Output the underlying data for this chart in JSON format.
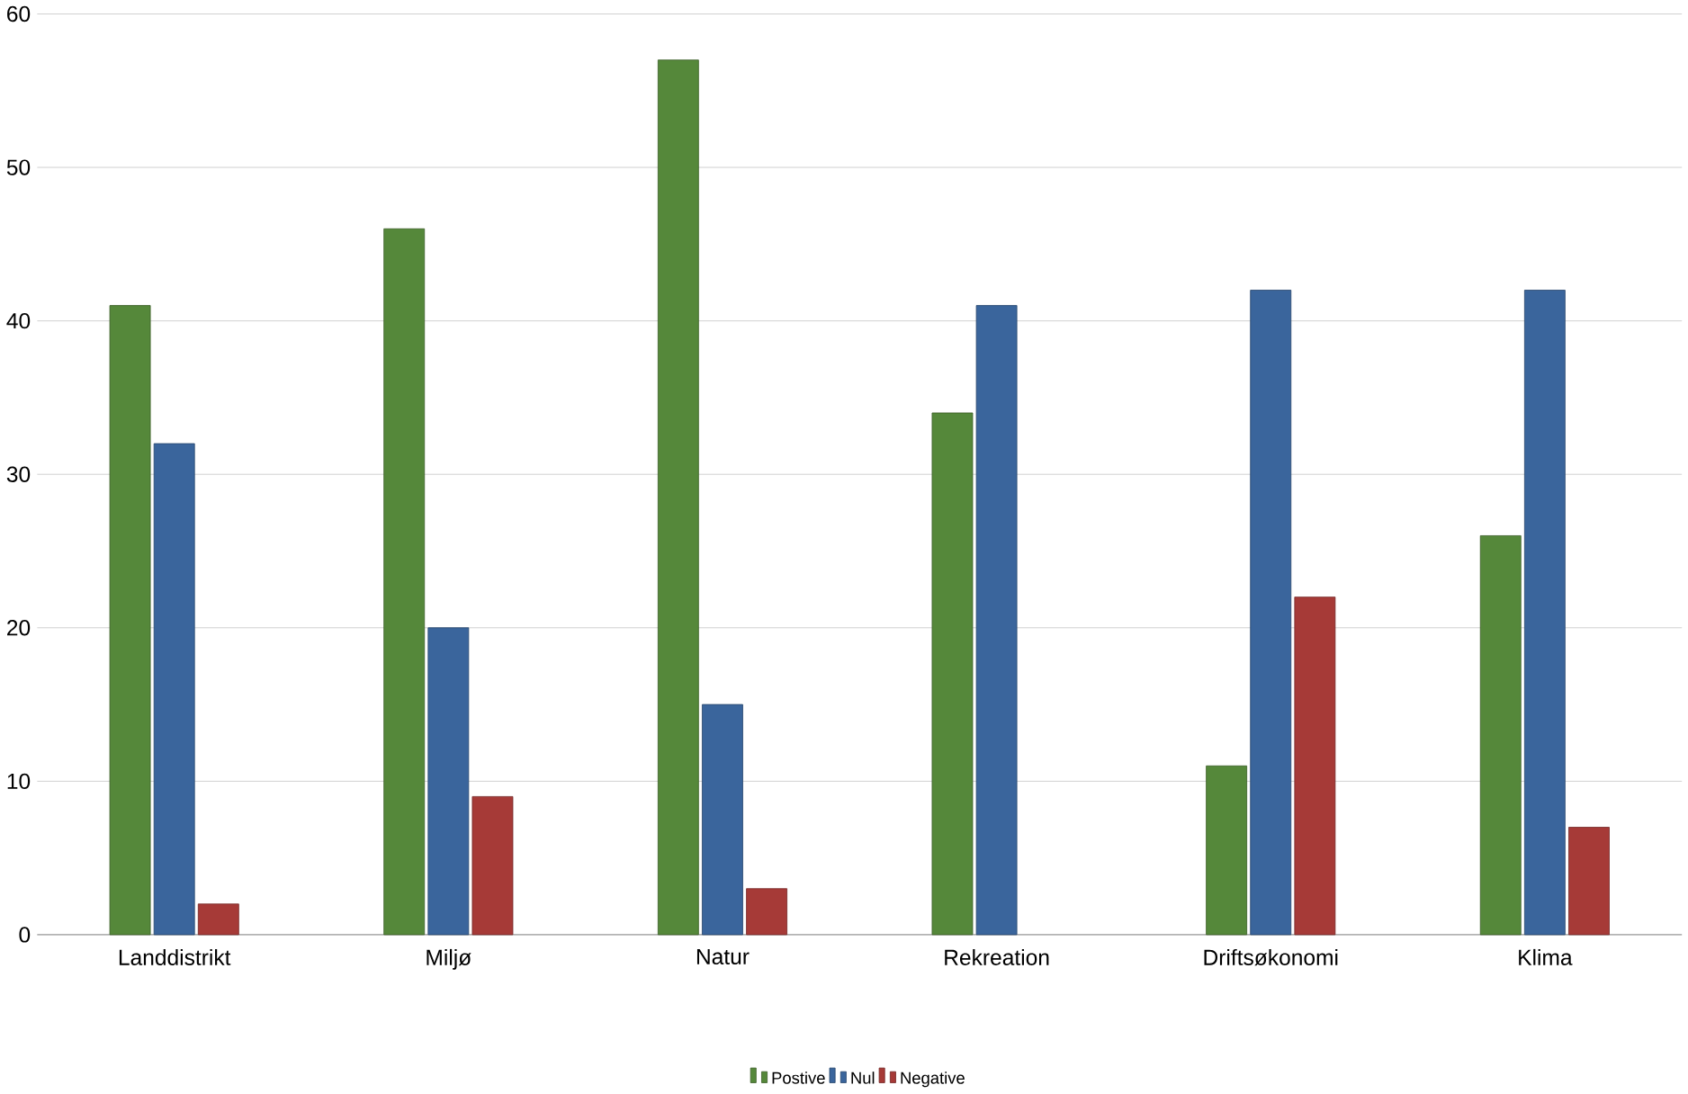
{
  "chart_data": {
    "type": "bar",
    "categories": [
      "Landdistrikt",
      "Miljø",
      "Natur",
      "Rekreation",
      "Driftsøkonomi",
      "Klima"
    ],
    "series": [
      {
        "name": "Postive",
        "color": "#55883a",
        "values": [
          41,
          46,
          57,
          34,
          11,
          26
        ]
      },
      {
        "name": "Nul",
        "color": "#3a659c",
        "values": [
          32,
          20,
          15,
          41,
          42,
          42
        ]
      },
      {
        "name": "Negative",
        "color": "#a63a37",
        "values": [
          2,
          9,
          3,
          null,
          22,
          7
        ]
      }
    ],
    "ylim": [
      0,
      60
    ],
    "yticks": [
      0,
      10,
      20,
      30,
      40,
      50,
      60
    ],
    "grid": "y",
    "legend": "bottom"
  }
}
